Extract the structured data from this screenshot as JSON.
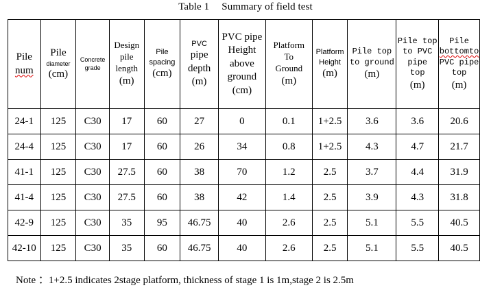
{
  "caption": {
    "number": "Table 1",
    "title": "Summary of field test"
  },
  "headers": [
    {
      "lines": [
        {
          "t": "Pile",
          "c": "lg"
        },
        {
          "t": "num",
          "c": "lg wavy"
        }
      ]
    },
    {
      "lines": [
        {
          "t": "Pile",
          "c": "lg"
        },
        {
          "t": "diameter",
          "c": "xs"
        },
        {
          "t": "(cm)",
          "c": "lg"
        }
      ]
    },
    {
      "lines": [
        {
          "t": "Concrete",
          "c": "xs"
        },
        {
          "t": "grade",
          "c": "xs"
        }
      ]
    },
    {
      "lines": [
        {
          "t": "Design",
          "c": "md"
        },
        {
          "t": "pile",
          "c": "md"
        },
        {
          "t": "length",
          "c": "md"
        },
        {
          "t": "(m)",
          "c": "lg"
        }
      ]
    },
    {
      "lines": [
        {
          "t": "Pile",
          "c": "sm"
        },
        {
          "t": "spacing",
          "c": "sm"
        },
        {
          "t": "(cm)",
          "c": "lg"
        }
      ]
    },
    {
      "lines": [
        {
          "t": "PVC",
          "c": "sm"
        },
        {
          "t": "pipe",
          "c": "lg"
        },
        {
          "t": "depth",
          "c": "lg"
        },
        {
          "t": "(m)",
          "c": "lg"
        }
      ]
    },
    {
      "lines": [
        {
          "t": "PVC pipe",
          "c": "lg"
        },
        {
          "t": "Height",
          "c": "lg"
        },
        {
          "t": "above",
          "c": "lg"
        },
        {
          "t": "ground",
          "c": "lg"
        },
        {
          "t": "(cm)",
          "c": "lg"
        }
      ]
    },
    {
      "lines": [
        {
          "t": "Platform",
          "c": "md"
        },
        {
          "t": "To",
          "c": "md"
        },
        {
          "t": "Ground",
          "c": "md"
        },
        {
          "t": "(m)",
          "c": "lg"
        }
      ]
    },
    {
      "lines": [
        {
          "t": "Platform",
          "c": "sm"
        },
        {
          "t": "Height",
          "c": "sm"
        },
        {
          "t": "(m)",
          "c": "lg"
        }
      ]
    },
    {
      "lines": [
        {
          "t": "Pile top",
          "c": "mono"
        },
        {
          "t": "to ground",
          "c": "mono"
        },
        {
          "t": "(m)",
          "c": "lg"
        }
      ]
    },
    {
      "lines": [
        {
          "t": "Pile top",
          "c": "mono"
        },
        {
          "t": "to PVC",
          "c": "mono"
        },
        {
          "t": "pipe",
          "c": "mono"
        },
        {
          "t": "top",
          "c": "mono"
        },
        {
          "t": "(m)",
          "c": "lg"
        }
      ]
    },
    {
      "lines": [
        {
          "t": "Pile",
          "c": "mono"
        },
        {
          "t": "bottomto",
          "c": "mono wavy"
        },
        {
          "t": "PVC pipe",
          "c": "mono"
        },
        {
          "t": "top",
          "c": "mono"
        },
        {
          "t": "(m)",
          "c": "lg"
        }
      ]
    }
  ],
  "rows": [
    [
      "24-1",
      "125",
      "C30",
      "17",
      "60",
      "27",
      "0",
      "0.1",
      "1+2.5",
      "3.6",
      "3.6",
      "20.6"
    ],
    [
      "24-4",
      "125",
      "C30",
      "17",
      "60",
      "26",
      "34",
      "0.8",
      "1+2.5",
      "4.3",
      "4.7",
      "21.7"
    ],
    [
      "41-1",
      "125",
      "C30",
      "27.5",
      "60",
      "38",
      "70",
      "1.2",
      "2.5",
      "3.7",
      "4.4",
      "31.9"
    ],
    [
      "41-4",
      "125",
      "C30",
      "27.5",
      "60",
      "38",
      "42",
      "1.4",
      "2.5",
      "3.9",
      "4.3",
      "31.8"
    ],
    [
      "42-9",
      "125",
      "C30",
      "35",
      "95",
      "46.75",
      "40",
      "2.6",
      "2.5",
      "5.1",
      "5.5",
      "40.5"
    ],
    [
      "42-10",
      "125",
      "C30",
      "35",
      "60",
      "46.75",
      "40",
      "2.6",
      "2.5",
      "5.1",
      "5.5",
      "40.5"
    ]
  ],
  "note": "Note  ：1+2.5 indicates 2stage platform, thickness of stage 1 is 1m,stage 2 is 2.5m"
}
